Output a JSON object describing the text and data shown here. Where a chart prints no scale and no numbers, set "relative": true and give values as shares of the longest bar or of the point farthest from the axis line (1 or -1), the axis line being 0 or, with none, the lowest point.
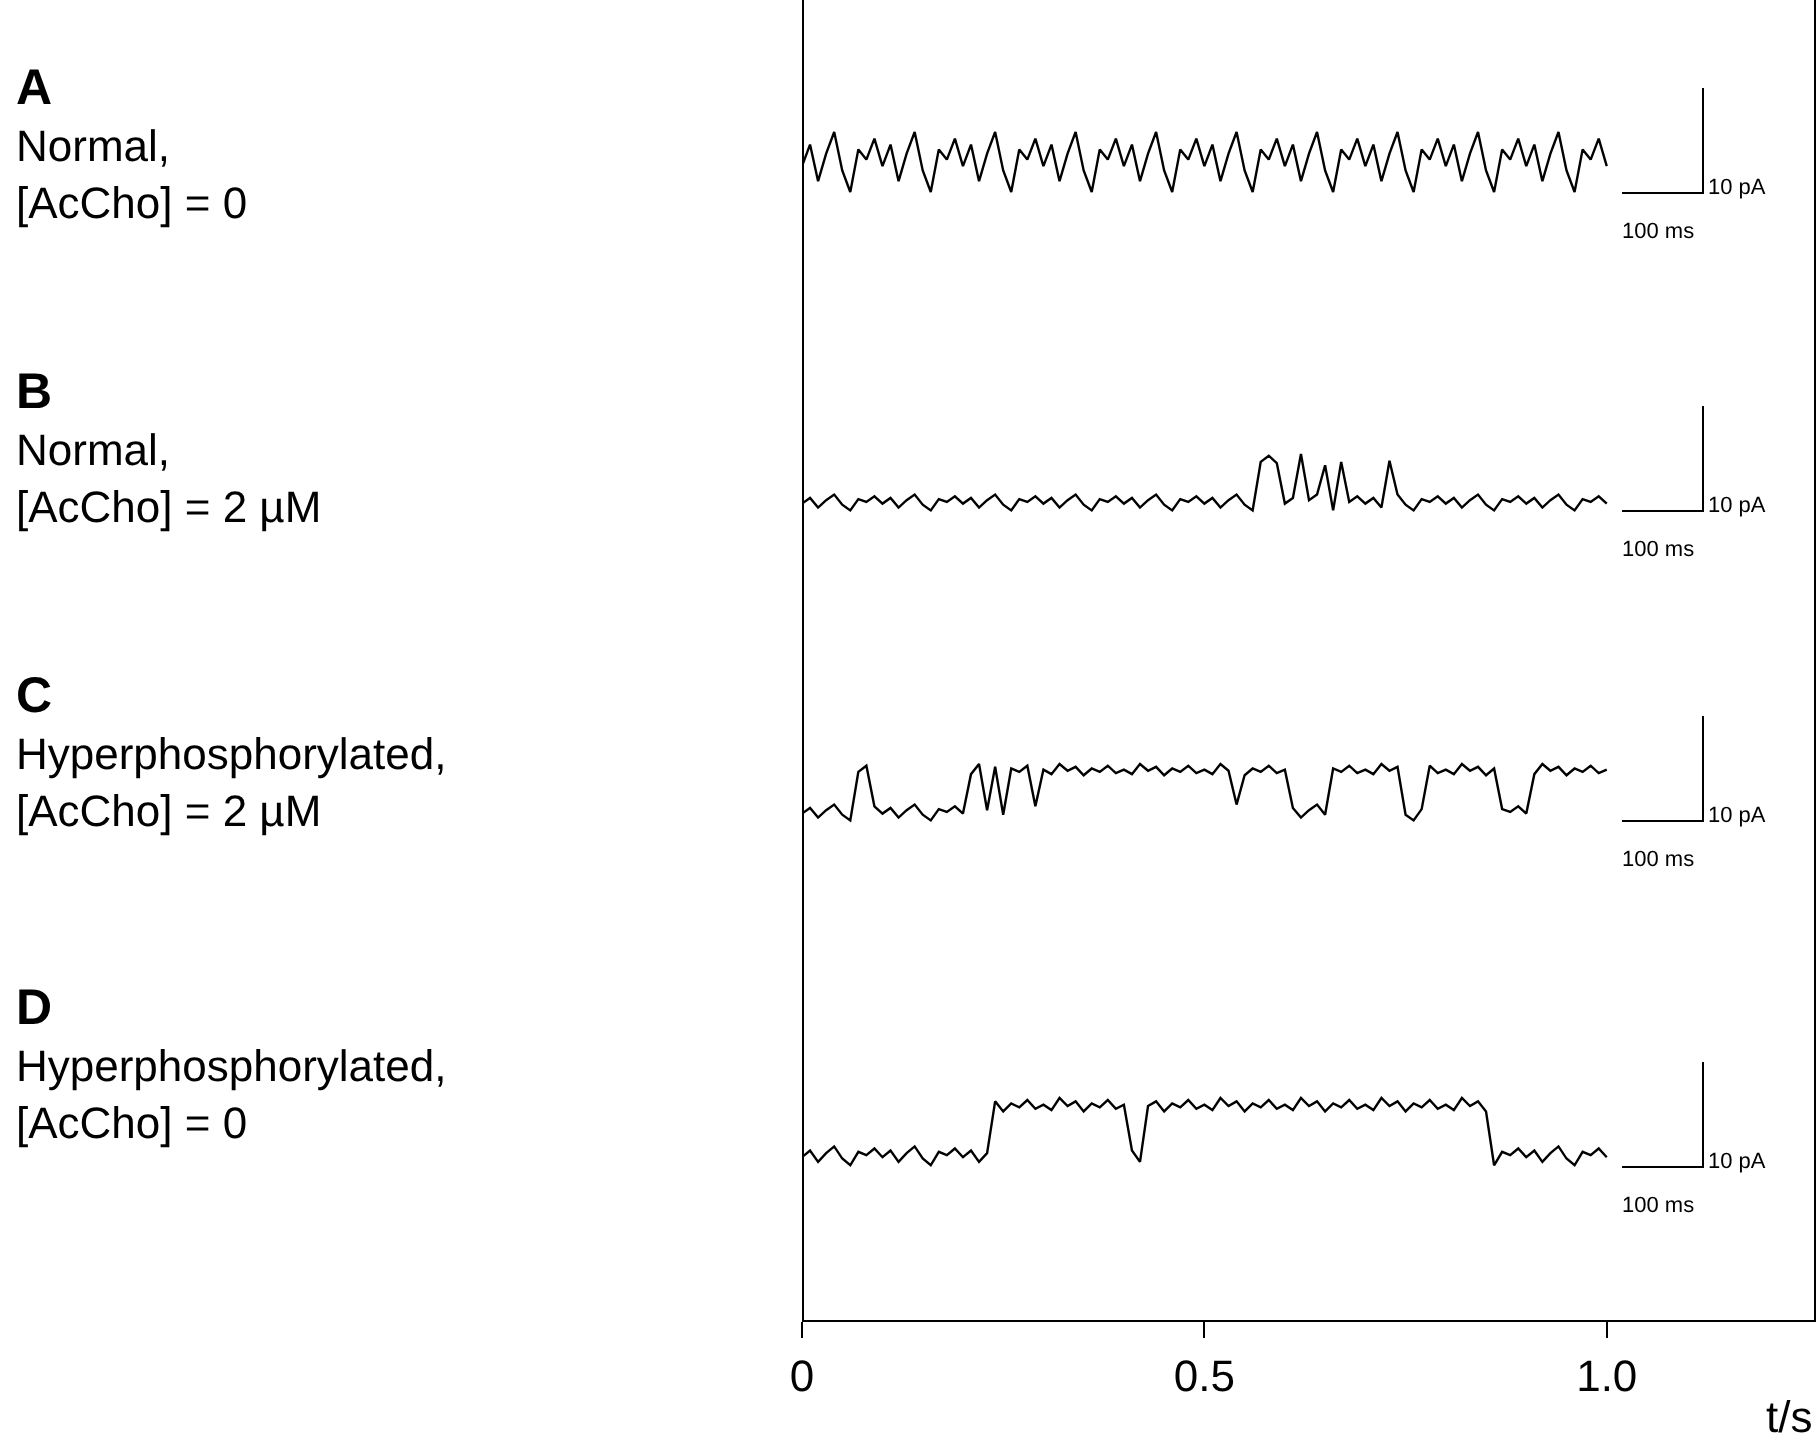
{
  "chart_data": [
    {
      "type": "line",
      "ylabel": "A\nNormal,\n[AcCho] = 0",
      "relative": true,
      "xlim": [
        0,
        1.26
      ],
      "tick_labels": false,
      "color": "#000000",
      "annotations": [
        "10 pA",
        "100 ms"
      ],
      "x": [
        0,
        0.01,
        0.02,
        0.03,
        0.04,
        0.05,
        0.06,
        0.07,
        0.08,
        0.09,
        0.1,
        0.11,
        0.12,
        0.13,
        0.14,
        0.15,
        0.16,
        0.17,
        0.18,
        0.19,
        0.2,
        0.21,
        0.22,
        0.23,
        0.24,
        0.25,
        0.26,
        0.27,
        0.28,
        0.29,
        0.3,
        0.31,
        0.32,
        0.33,
        0.34,
        0.35,
        0.36,
        0.37,
        0.38,
        0.39,
        0.4,
        0.41,
        0.42,
        0.43,
        0.44,
        0.45,
        0.46,
        0.47,
        0.48,
        0.49,
        0.5,
        0.51,
        0.52,
        0.53,
        0.54,
        0.55,
        0.56,
        0.57,
        0.58,
        0.59,
        0.6,
        0.61,
        0.62,
        0.63,
        0.64,
        0.65,
        0.66,
        0.67,
        0.68,
        0.69,
        0.7,
        0.71,
        0.72,
        0.73,
        0.74,
        0.75,
        0.76,
        0.77,
        0.78,
        0.79,
        0.8,
        0.81,
        0.82,
        0.83,
        0.84,
        0.85,
        0.86,
        0.87,
        0.88,
        0.89,
        0.9,
        0.91,
        0.92,
        0.93,
        0.94,
        0.95,
        0.96,
        0.97,
        0.98,
        0.99,
        1
      ],
      "values": [
        0.43,
        0.79,
        0.18,
        0.64,
        1,
        0.36,
        0,
        0.71,
        0.54,
        0.89,
        0.43,
        0.79,
        0.18,
        0.64,
        1,
        0.36,
        0,
        0.71,
        0.54,
        0.89,
        0.43,
        0.79,
        0.18,
        0.64,
        1,
        0.36,
        0,
        0.71,
        0.54,
        0.89,
        0.43,
        0.79,
        0.18,
        0.64,
        1,
        0.36,
        0,
        0.71,
        0.54,
        0.89,
        0.43,
        0.79,
        0.18,
        0.64,
        1,
        0.36,
        0,
        0.71,
        0.54,
        0.89,
        0.43,
        0.79,
        0.18,
        0.64,
        1,
        0.36,
        0,
        0.71,
        0.54,
        0.89,
        0.43,
        0.79,
        0.18,
        0.64,
        1,
        0.36,
        0,
        0.71,
        0.54,
        0.89,
        0.43,
        0.79,
        0.18,
        0.64,
        1,
        0.36,
        0,
        0.71,
        0.54,
        0.89,
        0.43,
        0.79,
        0.18,
        0.64,
        1,
        0.36,
        0,
        0.71,
        0.54,
        0.89,
        0.43,
        0.79,
        0.18,
        0.64,
        1,
        0.36,
        0,
        0.71,
        0.54,
        0.89,
        0.43
      ]
    },
    {
      "type": "line",
      "ylabel": "B\nNormal,\n[AcCho] = 2 µM",
      "relative": true,
      "xlim": [
        0,
        1.26
      ],
      "tick_labels": false,
      "color": "#000000",
      "annotations": [
        "10 pA",
        "100 ms"
      ],
      "x": [
        0,
        0.01,
        0.02,
        0.03,
        0.04,
        0.05,
        0.06,
        0.07,
        0.08,
        0.09,
        0.1,
        0.11,
        0.12,
        0.13,
        0.14,
        0.15,
        0.16,
        0.17,
        0.18,
        0.19,
        0.2,
        0.21,
        0.22,
        0.23,
        0.24,
        0.25,
        0.26,
        0.27,
        0.28,
        0.29,
        0.3,
        0.31,
        0.32,
        0.33,
        0.34,
        0.35,
        0.36,
        0.37,
        0.38,
        0.39,
        0.4,
        0.41,
        0.42,
        0.43,
        0.44,
        0.45,
        0.46,
        0.47,
        0.48,
        0.49,
        0.5,
        0.51,
        0.52,
        0.53,
        0.54,
        0.55,
        0.56,
        0.57,
        0.58,
        0.59,
        0.6,
        0.61,
        0.62,
        0.63,
        0.64,
        0.65,
        0.66,
        0.67,
        0.68,
        0.69,
        0.7,
        0.71,
        0.72,
        0.73,
        0.74,
        0.75,
        0.76,
        0.77,
        0.78,
        0.79,
        0.8,
        0.81,
        0.82,
        0.83,
        0.84,
        0.85,
        0.86,
        0.87,
        0.88,
        0.89,
        0.9,
        0.91,
        0.92,
        0.93,
        0.94,
        0.95,
        0.96,
        0.97,
        0.98,
        0.99,
        1
      ],
      "values": [
        0.12,
        0.22,
        0.05,
        0.18,
        0.28,
        0.1,
        0,
        0.2,
        0.15,
        0.25,
        0.12,
        0.22,
        0.05,
        0.18,
        0.28,
        0.1,
        0,
        0.2,
        0.15,
        0.25,
        0.12,
        0.22,
        0.05,
        0.18,
        0.28,
        0.1,
        0,
        0.2,
        0.15,
        0.25,
        0.12,
        0.22,
        0.05,
        0.18,
        0.28,
        0.1,
        0,
        0.2,
        0.15,
        0.25,
        0.12,
        0.22,
        0.05,
        0.18,
        0.28,
        0.1,
        0,
        0.2,
        0.15,
        0.25,
        0.12,
        0.22,
        0.05,
        0.18,
        0.28,
        0.1,
        0,
        0.86,
        0.97,
        0.84,
        0.12,
        0.22,
        1,
        0.18,
        0.28,
        0.8,
        0,
        0.86,
        0.15,
        0.25,
        0.12,
        0.22,
        0.05,
        0.88,
        0.28,
        0.1,
        0,
        0.2,
        0.15,
        0.25,
        0.12,
        0.22,
        0.05,
        0.18,
        0.28,
        0.1,
        0,
        0.2,
        0.15,
        0.25,
        0.12,
        0.22,
        0.05,
        0.18,
        0.28,
        0.1,
        0,
        0.2,
        0.15,
        0.25,
        0.12
      ]
    },
    {
      "type": "line",
      "ylabel": "C\nHyperphosphorylated,\n[AcCho] = 2 µM",
      "relative": true,
      "xlim": [
        0,
        1.26
      ],
      "tick_labels": false,
      "color": "#000000",
      "annotations": [
        "10 pA",
        "100 ms"
      ],
      "x": [
        0,
        0.01,
        0.02,
        0.03,
        0.04,
        0.05,
        0.06,
        0.07,
        0.08,
        0.09,
        0.1,
        0.11,
        0.12,
        0.13,
        0.14,
        0.15,
        0.16,
        0.17,
        0.18,
        0.19,
        0.2,
        0.21,
        0.22,
        0.23,
        0.24,
        0.25,
        0.26,
        0.27,
        0.28,
        0.29,
        0.3,
        0.31,
        0.32,
        0.33,
        0.34,
        0.35,
        0.36,
        0.37,
        0.38,
        0.39,
        0.4,
        0.41,
        0.42,
        0.43,
        0.44,
        0.45,
        0.46,
        0.47,
        0.48,
        0.49,
        0.5,
        0.51,
        0.52,
        0.53,
        0.54,
        0.55,
        0.56,
        0.57,
        0.58,
        0.59,
        0.6,
        0.61,
        0.62,
        0.63,
        0.64,
        0.65,
        0.66,
        0.67,
        0.68,
        0.69,
        0.7,
        0.71,
        0.72,
        0.73,
        0.74,
        0.75,
        0.76,
        0.77,
        0.78,
        0.79,
        0.8,
        0.81,
        0.82,
        0.83,
        0.84,
        0.85,
        0.86,
        0.87,
        0.88,
        0.89,
        0.9,
        0.91,
        0.92,
        0.93,
        0.94,
        0.95,
        0.96,
        0.97,
        0.98,
        0.99,
        1
      ],
      "values": [
        0.12,
        0.22,
        0.05,
        0.18,
        0.28,
        0.1,
        0,
        0.86,
        0.97,
        0.25,
        0.12,
        0.22,
        0.05,
        0.18,
        0.28,
        0.1,
        0,
        0.2,
        0.15,
        0.25,
        0.12,
        0.82,
        1,
        0.18,
        0.95,
        0.1,
        0.92,
        0.86,
        0.97,
        0.25,
        0.9,
        0.82,
        1,
        0.88,
        0.95,
        0.8,
        0.92,
        0.86,
        0.97,
        0.84,
        0.9,
        0.82,
        1,
        0.88,
        0.95,
        0.8,
        0.92,
        0.86,
        0.97,
        0.84,
        0.9,
        0.82,
        1,
        0.88,
        0.28,
        0.8,
        0.92,
        0.86,
        0.97,
        0.84,
        0.9,
        0.22,
        0.05,
        0.18,
        0.28,
        0.1,
        0.92,
        0.86,
        0.97,
        0.84,
        0.9,
        0.82,
        1,
        0.88,
        0.95,
        0.1,
        0,
        0.2,
        0.97,
        0.84,
        0.9,
        0.82,
        1,
        0.88,
        0.95,
        0.8,
        0.92,
        0.2,
        0.15,
        0.25,
        0.12,
        0.82,
        1,
        0.88,
        0.95,
        0.8,
        0.92,
        0.86,
        0.97,
        0.84,
        0.9
      ]
    },
    {
      "type": "line",
      "ylabel": "D\nHyperphosphorylated,\n[AcCho] = 0",
      "relative": true,
      "xlim": [
        0,
        1.26
      ],
      "xticks": [
        0,
        0.5,
        {
          "value": 1,
          "label": "1.0"
        }
      ],
      "xlabel": "t/s",
      "tick_labels": "x",
      "color": "#000000",
      "annotations": [
        "10 pA",
        "100 ms"
      ],
      "x": [
        0,
        0.01,
        0.02,
        0.03,
        0.04,
        0.05,
        0.06,
        0.07,
        0.08,
        0.09,
        0.1,
        0.11,
        0.12,
        0.13,
        0.14,
        0.15,
        0.16,
        0.17,
        0.18,
        0.19,
        0.2,
        0.21,
        0.22,
        0.23,
        0.24,
        0.25,
        0.26,
        0.27,
        0.28,
        0.29,
        0.3,
        0.31,
        0.32,
        0.33,
        0.34,
        0.35,
        0.36,
        0.37,
        0.38,
        0.39,
        0.4,
        0.41,
        0.42,
        0.43,
        0.44,
        0.45,
        0.46,
        0.47,
        0.48,
        0.49,
        0.5,
        0.51,
        0.52,
        0.53,
        0.54,
        0.55,
        0.56,
        0.57,
        0.58,
        0.59,
        0.6,
        0.61,
        0.62,
        0.63,
        0.64,
        0.65,
        0.66,
        0.67,
        0.68,
        0.69,
        0.7,
        0.71,
        0.72,
        0.73,
        0.74,
        0.75,
        0.76,
        0.77,
        0.78,
        0.79,
        0.8,
        0.81,
        0.82,
        0.83,
        0.84,
        0.85,
        0.86,
        0.87,
        0.88,
        0.89,
        0.9,
        0.91,
        0.92,
        0.93,
        0.94,
        0.95,
        0.96,
        0.97,
        0.98,
        0.99,
        1
      ],
      "values": [
        0.12,
        0.22,
        0.05,
        0.18,
        0.28,
        0.1,
        0,
        0.2,
        0.15,
        0.25,
        0.12,
        0.22,
        0.05,
        0.18,
        0.28,
        0.1,
        0,
        0.2,
        0.15,
        0.25,
        0.12,
        0.22,
        0.05,
        0.18,
        0.95,
        0.8,
        0.92,
        0.86,
        0.97,
        0.84,
        0.9,
        0.82,
        1,
        0.88,
        0.95,
        0.8,
        0.92,
        0.86,
        0.97,
        0.84,
        0.9,
        0.22,
        0.05,
        0.88,
        0.95,
        0.8,
        0.92,
        0.86,
        0.97,
        0.84,
        0.9,
        0.82,
        1,
        0.88,
        0.95,
        0.8,
        0.92,
        0.86,
        0.97,
        0.84,
        0.9,
        0.82,
        1,
        0.88,
        0.95,
        0.8,
        0.92,
        0.86,
        0.97,
        0.84,
        0.9,
        0.82,
        1,
        0.88,
        0.95,
        0.8,
        0.92,
        0.86,
        0.97,
        0.84,
        0.9,
        0.82,
        1,
        0.88,
        0.95,
        0.8,
        0,
        0.2,
        0.15,
        0.25,
        0.12,
        0.22,
        0.05,
        0.18,
        0.28,
        0.1,
        0,
        0.2,
        0.15,
        0.25,
        0.12
      ]
    }
  ]
}
